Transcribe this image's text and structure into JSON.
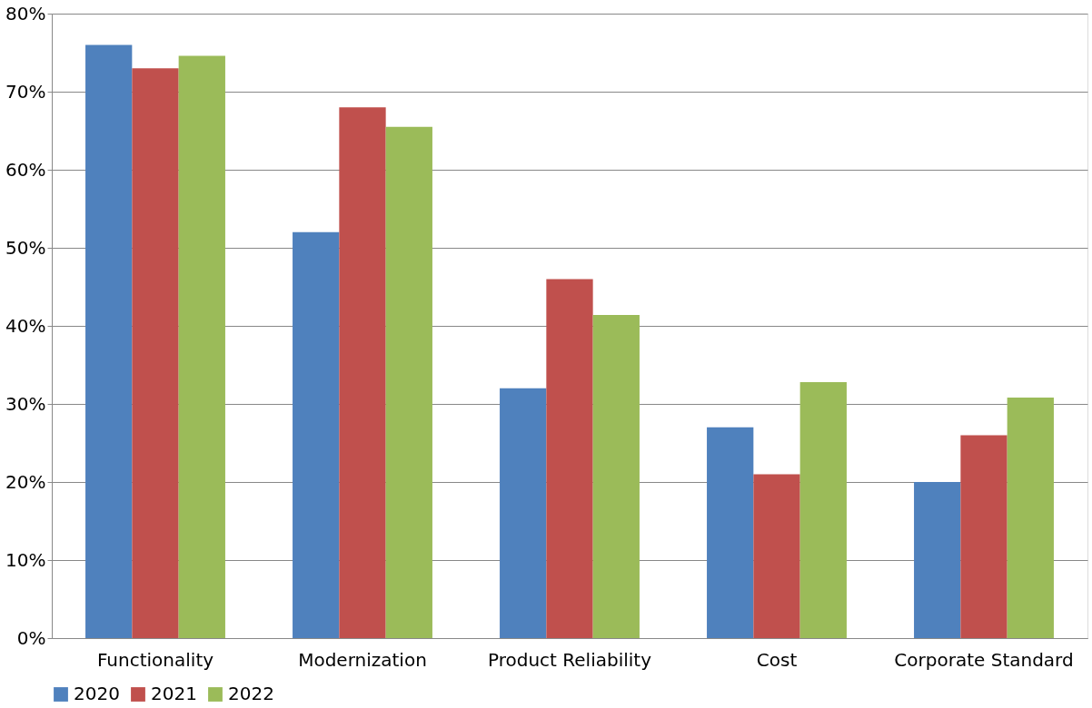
{
  "chart_data": {
    "type": "bar",
    "categories": [
      "Functionality",
      "Modernization",
      "Product Reliability",
      "Cost",
      "Corporate Standard"
    ],
    "series": [
      {
        "name": "2020",
        "color": "#4f81bd",
        "values": [
          76,
          52,
          32,
          27,
          20
        ]
      },
      {
        "name": "2021",
        "color": "#c0504d",
        "values": [
          73,
          68,
          46,
          21,
          26
        ]
      },
      {
        "name": "2022",
        "color": "#9bbb59",
        "values": [
          74.6,
          65.5,
          41.4,
          32.8,
          30.8
        ]
      }
    ],
    "ylim": [
      0,
      80
    ],
    "yticks": [
      {
        "value": 0,
        "label": "0%"
      },
      {
        "value": 10,
        "label": "10%"
      },
      {
        "value": 20,
        "label": "20%"
      },
      {
        "value": 30,
        "label": "30%"
      },
      {
        "value": 40,
        "label": "40%"
      },
      {
        "value": 50,
        "label": "50%"
      },
      {
        "value": 60,
        "label": "60%"
      },
      {
        "value": 70,
        "label": "70%"
      },
      {
        "value": 80,
        "label": "80%"
      }
    ],
    "grid": "y",
    "legend": "bottom"
  }
}
